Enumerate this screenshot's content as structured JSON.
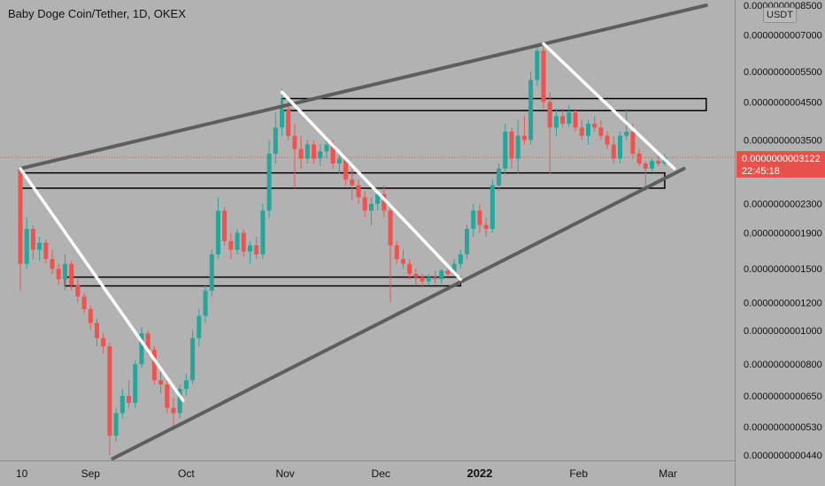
{
  "header": {
    "title": "Baby Doge Coin/Tether, 1D, OKEX",
    "currency": "USDT"
  },
  "last_price": {
    "value": "0.0000000003122",
    "countdown": "22:45:18"
  },
  "colors": {
    "background": "#b2b2b2",
    "up": "#26a69a",
    "down": "#ef5350",
    "trendline_gray": "#5e5e5e",
    "trendline_white": "#ffffff",
    "box_stroke": "#000000",
    "price_line": "#e8514a"
  },
  "chart_data": {
    "type": "candlestick",
    "symbol": "Baby Doge Coin/Tether",
    "interval": "1D",
    "exchange": "OKEX",
    "quote_currency": "USDT",
    "y_scale": "log",
    "y_tick_labels": [
      "0.0000000008500",
      "0.0000000007000",
      "0.0000000005500",
      "0.0000000004500",
      "0.0000000003500",
      "0.0000000002300",
      "0.0000000001900",
      "0.0000000001500",
      "0.0000000001200",
      "0.0000000001000",
      "0.0000000000800",
      "0.0000000000650",
      "0.0000000000530",
      "0.0000000000440"
    ],
    "y_ticks": [
      8.5e-10,
      7e-10,
      5.5e-10,
      4.5e-10,
      3.5e-10,
      2.3e-10,
      1.9e-10,
      1.5e-10,
      1.2e-10,
      1e-10,
      8e-11,
      6.5e-11,
      5.3e-11,
      4.4e-11
    ],
    "x_tick_labels": [
      "10",
      "Sep",
      "Oct",
      "Nov",
      "Dec",
      "2022",
      "Feb",
      "Mar"
    ],
    "x_tick_dates": [
      "2021-08-10",
      "2021-09-01",
      "2021-10-01",
      "2021-11-01",
      "2021-12-01",
      "2022-01-01",
      "2022-02-01",
      "2022-03-01"
    ],
    "last_price": 3.122e-10,
    "trend_lines": [
      {
        "kind": "gray",
        "from": {
          "date": "2021-08-10",
          "price": 2.9e-10
        },
        "to": {
          "date": "2022-03-13",
          "price": 8.5e-10
        }
      },
      {
        "kind": "gray",
        "from": {
          "date": "2021-09-08",
          "price": 4.3e-11
        },
        "to": {
          "date": "2022-03-06",
          "price": 2.9e-10
        }
      },
      {
        "kind": "white",
        "from": {
          "date": "2021-08-10",
          "price": 2.9e-10
        },
        "to": {
          "date": "2021-09-30",
          "price": 6.3e-11
        }
      },
      {
        "kind": "white",
        "from": {
          "date": "2021-10-31",
          "price": 4.8e-10
        },
        "to": {
          "date": "2021-12-26",
          "price": 1.4e-10
        }
      },
      {
        "kind": "white",
        "from": {
          "date": "2022-01-21",
          "price": 6.6e-10
        },
        "to": {
          "date": "2022-03-03",
          "price": 2.9e-10
        }
      }
    ],
    "zones": [
      {
        "from": "2021-10-31",
        "to": "2022-03-13",
        "top": 4.6e-10,
        "bottom": 4.25e-10
      },
      {
        "from": "2021-08-10",
        "to": "2022-02-28",
        "top": 2.82e-10,
        "bottom": 2.55e-10
      },
      {
        "from": "2021-08-24",
        "to": "2021-12-26",
        "top": 1.42e-10,
        "bottom": 1.34e-10
      }
    ],
    "ohlc": [
      [
        "2021-08-10",
        2.9e-10,
        2.9e-10,
        1.3e-10,
        1.55e-10
      ],
      [
        "2021-08-12",
        1.55e-10,
        2.1e-10,
        1.5e-10,
        1.95e-10
      ],
      [
        "2021-08-14",
        1.95e-10,
        2e-10,
        1.6e-10,
        1.7e-10
      ],
      [
        "2021-08-16",
        1.7e-10,
        1.85e-10,
        1.58e-10,
        1.78e-10
      ],
      [
        "2021-08-18",
        1.78e-10,
        1.82e-10,
        1.55e-10,
        1.6e-10
      ],
      [
        "2021-08-20",
        1.6e-10,
        1.7e-10,
        1.45e-10,
        1.5e-10
      ],
      [
        "2021-08-22",
        1.5e-10,
        1.55e-10,
        1.35e-10,
        1.4e-10
      ],
      [
        "2021-08-24",
        1.4e-10,
        1.65e-10,
        1.3e-10,
        1.55e-10
      ],
      [
        "2021-08-26",
        1.55e-10,
        1.58e-10,
        1.3e-10,
        1.35e-10
      ],
      [
        "2021-08-28",
        1.35e-10,
        1.4e-10,
        1.2e-10,
        1.25e-10
      ],
      [
        "2021-08-30",
        1.25e-10,
        1.28e-10,
        1.12e-10,
        1.15e-10
      ],
      [
        "2021-09-01",
        1.15e-10,
        1.18e-10,
        1e-10,
        1.05e-10
      ],
      [
        "2021-09-03",
        1.05e-10,
        1.08e-10,
        9e-11,
        9.5e-11
      ],
      [
        "2021-09-05",
        9.5e-11,
        9.8e-11,
        8.6e-11,
        9e-11
      ],
      [
        "2021-09-07",
        9e-11,
        9.2e-11,
        4.4e-11,
        5e-11
      ],
      [
        "2021-09-09",
        5e-11,
        6e-11,
        4.8e-11,
        5.8e-11
      ],
      [
        "2021-09-11",
        5.8e-11,
        6.8e-11,
        5.6e-11,
        6.5e-11
      ],
      [
        "2021-09-13",
        6.5e-11,
        7.2e-11,
        6e-11,
        6.2e-11
      ],
      [
        "2021-09-15",
        6.2e-11,
        8.2e-11,
        6e-11,
        8e-11
      ],
      [
        "2021-09-17",
        8e-11,
        1.02e-10,
        7.8e-11,
        9.8e-11
      ],
      [
        "2021-09-19",
        9.8e-11,
        1e-10,
        8.5e-11,
        8.8e-11
      ],
      [
        "2021-09-21",
        8.8e-11,
        9e-11,
        7e-11,
        7.2e-11
      ],
      [
        "2021-09-23",
        7.2e-11,
        7.8e-11,
        6.6e-11,
        7e-11
      ],
      [
        "2021-09-25",
        7e-11,
        7.2e-11,
        5.8e-11,
        6e-11
      ],
      [
        "2021-09-27",
        6e-11,
        6.4e-11,
        5.2e-11,
        5.8e-11
      ],
      [
        "2021-09-29",
        5.8e-11,
        7e-11,
        5.6e-11,
        6.8e-11
      ],
      [
        "2021-10-01",
        6.8e-11,
        7.5e-11,
        6.5e-11,
        7.2e-11
      ],
      [
        "2021-10-03",
        7.2e-11,
        1e-10,
        7e-11,
        9.5e-11
      ],
      [
        "2021-10-05",
        9.5e-11,
        1.15e-10,
        9e-11,
        1.1e-10
      ],
      [
        "2021-10-07",
        1.1e-10,
        1.35e-10,
        1.05e-10,
        1.3e-10
      ],
      [
        "2021-10-09",
        1.3e-10,
        1.7e-10,
        1.25e-10,
        1.65e-10
      ],
      [
        "2021-10-11",
        1.65e-10,
        2.4e-10,
        1.6e-10,
        2.2e-10
      ],
      [
        "2021-10-13",
        2.2e-10,
        2.25e-10,
        1.75e-10,
        1.8e-10
      ],
      [
        "2021-10-15",
        1.8e-10,
        1.9e-10,
        1.6e-10,
        1.7e-10
      ],
      [
        "2021-10-17",
        1.7e-10,
        1.95e-10,
        1.65e-10,
        1.9e-10
      ],
      [
        "2021-10-19",
        1.9e-10,
        1.95e-10,
        1.62e-10,
        1.68e-10
      ],
      [
        "2021-10-21",
        1.68e-10,
        1.8e-10,
        1.55e-10,
        1.75e-10
      ],
      [
        "2021-10-23",
        1.75e-10,
        1.85e-10,
        1.6e-10,
        1.65e-10
      ],
      [
        "2021-10-25",
        1.65e-10,
        2.3e-10,
        1.6e-10,
        2.2e-10
      ],
      [
        "2021-10-27",
        2.2e-10,
        3.5e-10,
        2.1e-10,
        3.2e-10
      ],
      [
        "2021-10-29",
        3.2e-10,
        4.2e-10,
        3e-10,
        3.8e-10
      ],
      [
        "2021-10-31",
        3.8e-10,
        4.9e-10,
        3.6e-10,
        4.3e-10
      ],
      [
        "2021-11-02",
        4.3e-10,
        4.6e-10,
        3.5e-10,
        3.6e-10
      ],
      [
        "2021-11-04",
        3.6e-10,
        3.9e-10,
        2.55e-10,
        3.3e-10
      ],
      [
        "2021-11-06",
        3.3e-10,
        3.6e-10,
        2.9e-10,
        3.1e-10
      ],
      [
        "2021-11-08",
        3.1e-10,
        3.5e-10,
        3e-10,
        3.4e-10
      ],
      [
        "2021-11-10",
        3.4e-10,
        3.5e-10,
        3e-10,
        3.1e-10
      ],
      [
        "2021-11-12",
        3.1e-10,
        3.4e-10,
        2.95e-10,
        3.25e-10
      ],
      [
        "2021-11-14",
        3.25e-10,
        3.6e-10,
        3.1e-10,
        3.4e-10
      ],
      [
        "2021-11-16",
        3.4e-10,
        3.5e-10,
        2.9e-10,
        3e-10
      ],
      [
        "2021-11-18",
        3e-10,
        3.2e-10,
        2.8e-10,
        3.1e-10
      ],
      [
        "2021-11-20",
        3.1e-10,
        3.15e-10,
        2.6e-10,
        2.7e-10
      ],
      [
        "2021-11-22",
        2.7e-10,
        2.9e-10,
        2.35e-10,
        2.6e-10
      ],
      [
        "2021-11-24",
        2.6e-10,
        2.7e-10,
        2.3e-10,
        2.4e-10
      ],
      [
        "2021-11-26",
        2.4e-10,
        2.5e-10,
        2.1e-10,
        2.2e-10
      ],
      [
        "2021-11-28",
        2.2e-10,
        2.4e-10,
        2e-10,
        2.3e-10
      ],
      [
        "2021-11-30",
        2.3e-10,
        2.55e-10,
        2.2e-10,
        2.45e-10
      ],
      [
        "2021-12-02",
        2.45e-10,
        2.6e-10,
        2.1e-10,
        2.2e-10
      ],
      [
        "2021-12-04",
        2.2e-10,
        2.25e-10,
        1.2e-10,
        1.75e-10
      ],
      [
        "2021-12-06",
        1.75e-10,
        1.8e-10,
        1.55e-10,
        1.6e-10
      ],
      [
        "2021-12-08",
        1.6e-10,
        1.7e-10,
        1.5e-10,
        1.55e-10
      ],
      [
        "2021-12-10",
        1.55e-10,
        1.6e-10,
        1.4e-10,
        1.45e-10
      ],
      [
        "2021-12-12",
        1.45e-10,
        1.5e-10,
        1.35e-10,
        1.42e-10
      ],
      [
        "2021-12-14",
        1.42e-10,
        1.45e-10,
        1.32e-10,
        1.38e-10
      ],
      [
        "2021-12-16",
        1.38e-10,
        1.45e-10,
        1.35e-10,
        1.42e-10
      ],
      [
        "2021-12-18",
        1.42e-10,
        1.48e-10,
        1.36e-10,
        1.4e-10
      ],
      [
        "2021-12-20",
        1.4e-10,
        1.5e-10,
        1.36e-10,
        1.48e-10
      ],
      [
        "2021-12-22",
        1.48e-10,
        1.55e-10,
        1.42e-10,
        1.45e-10
      ],
      [
        "2021-12-24",
        1.45e-10,
        1.6e-10,
        1.42e-10,
        1.55e-10
      ],
      [
        "2021-12-26",
        1.55e-10,
        1.7e-10,
        1.5e-10,
        1.65e-10
      ],
      [
        "2021-12-28",
        1.65e-10,
        2e-10,
        1.6e-10,
        1.95e-10
      ],
      [
        "2021-12-30",
        1.95e-10,
        2.3e-10,
        1.85e-10,
        2.2e-10
      ],
      [
        "2022-01-01",
        2.2e-10,
        2.3e-10,
        1.9e-10,
        2e-10
      ],
      [
        "2022-01-03",
        2e-10,
        2.1e-10,
        1.85e-10,
        1.95e-10
      ],
      [
        "2022-01-05",
        1.95e-10,
        2.7e-10,
        1.9e-10,
        2.6e-10
      ],
      [
        "2022-01-07",
        2.6e-10,
        3e-10,
        2.5e-10,
        2.9e-10
      ],
      [
        "2022-01-09",
        2.9e-10,
        3.9e-10,
        2.8e-10,
        3.7e-10
      ],
      [
        "2022-01-11",
        3.7e-10,
        3.8e-10,
        2.9e-10,
        3.1e-10
      ],
      [
        "2022-01-13",
        3.1e-10,
        4e-10,
        2.8e-10,
        3.6e-10
      ],
      [
        "2022-01-15",
        3.6e-10,
        4.1e-10,
        3.4e-10,
        3.5e-10
      ],
      [
        "2022-01-17",
        3.5e-10,
        5.5e-10,
        3.4e-10,
        5.2e-10
      ],
      [
        "2022-01-19",
        5.2e-10,
        6.6e-10,
        5e-10,
        6.3e-10
      ],
      [
        "2022-01-21",
        6.3e-10,
        6.5e-10,
        4.3e-10,
        4.5e-10
      ],
      [
        "2022-01-23",
        4.5e-10,
        4.8e-10,
        2.8e-10,
        3.8e-10
      ],
      [
        "2022-01-25",
        3.8e-10,
        4.3e-10,
        3.6e-10,
        4.1e-10
      ],
      [
        "2022-01-27",
        4.1e-10,
        4.3e-10,
        3.8e-10,
        3.9e-10
      ],
      [
        "2022-01-29",
        3.9e-10,
        4.4e-10,
        3.8e-10,
        4.2e-10
      ],
      [
        "2022-01-31",
        4.2e-10,
        4.3e-10,
        3.7e-10,
        3.8e-10
      ],
      [
        "2022-02-02",
        3.8e-10,
        4e-10,
        3.5e-10,
        3.6e-10
      ],
      [
        "2022-02-04",
        3.6e-10,
        4e-10,
        3.4e-10,
        3.9e-10
      ],
      [
        "2022-02-06",
        3.9e-10,
        4.1e-10,
        3.7e-10,
        3.8e-10
      ],
      [
        "2022-02-08",
        3.8e-10,
        4e-10,
        3.5e-10,
        3.6e-10
      ],
      [
        "2022-02-10",
        3.6e-10,
        3.7e-10,
        3.3e-10,
        3.4e-10
      ],
      [
        "2022-02-12",
        3.4e-10,
        3.6e-10,
        3e-10,
        3.1e-10
      ],
      [
        "2022-02-14",
        3.1e-10,
        3.7e-10,
        3e-10,
        3.6e-10
      ],
      [
        "2022-02-16",
        3.6e-10,
        4.3e-10,
        3.5e-10,
        3.7e-10
      ],
      [
        "2022-02-18",
        3.7e-10,
        3.9e-10,
        3.1e-10,
        3.2e-10
      ],
      [
        "2022-02-20",
        3.2e-10,
        3.3e-10,
        2.95e-10,
        3e-10
      ],
      [
        "2022-02-22",
        3e-10,
        3.05e-10,
        2.5e-10,
        2.9e-10
      ],
      [
        "2022-02-24",
        2.9e-10,
        3.1e-10,
        2.85e-10,
        3.05e-10
      ],
      [
        "2022-02-26",
        3.05e-10,
        3.15e-10,
        2.95e-10,
        3e-10
      ],
      [
        "2022-02-28",
        3e-10,
        3.2e-10,
        2.95e-10,
        3.122e-10
      ]
    ]
  }
}
